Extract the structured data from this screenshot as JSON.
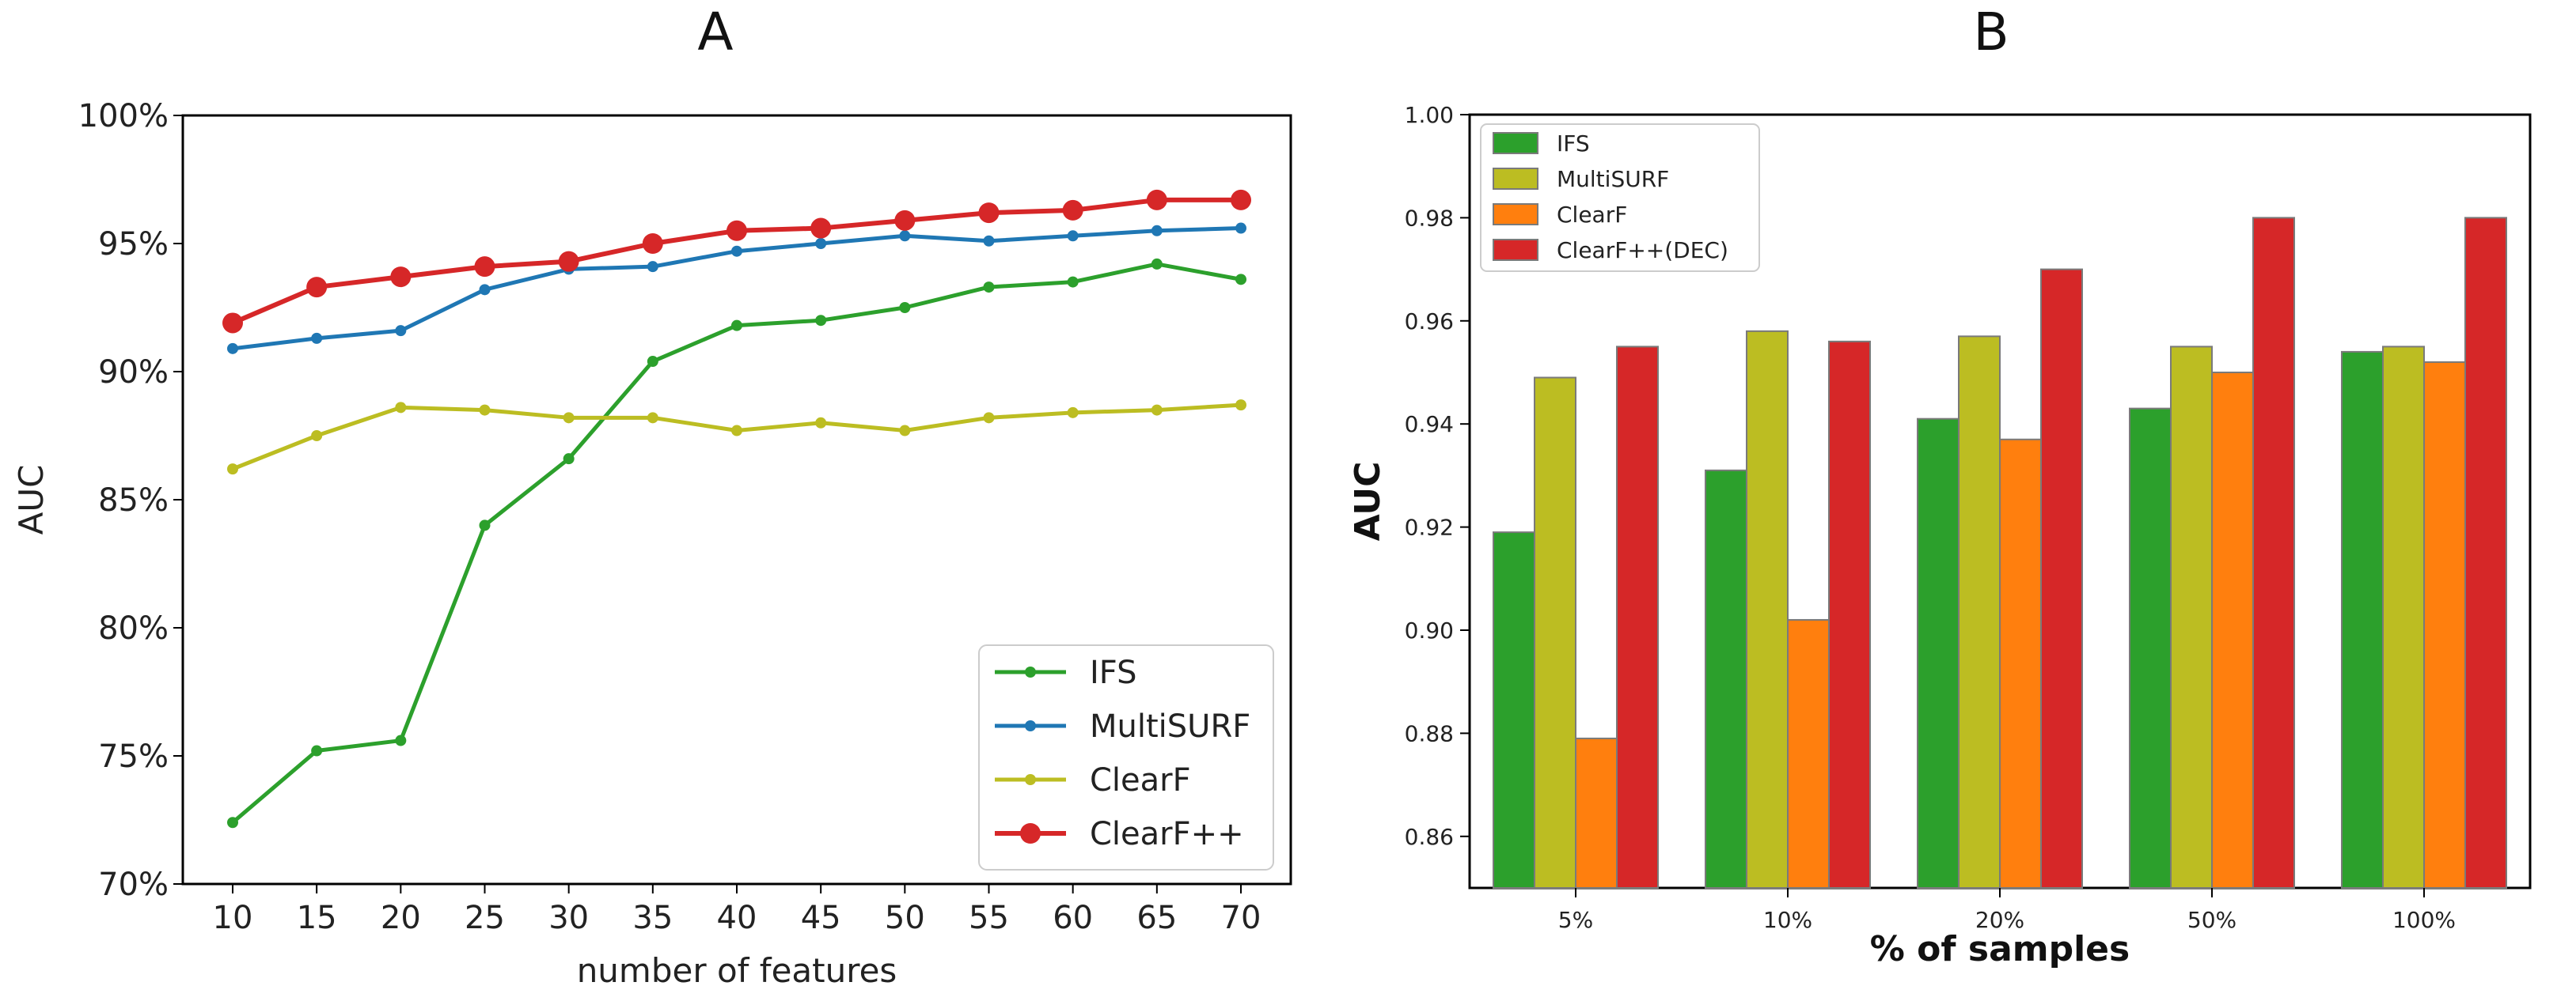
{
  "chart_data": [
    {
      "panel": "A",
      "type": "line",
      "title": "",
      "xlabel": "number of features",
      "ylabel": "AUC",
      "x": [
        10,
        15,
        20,
        25,
        30,
        35,
        40,
        45,
        50,
        55,
        60,
        65,
        70
      ],
      "ylim": [
        70,
        100
      ],
      "yticks": [
        70,
        75,
        80,
        85,
        90,
        95,
        100
      ],
      "ytick_labels": [
        "70%",
        "75%",
        "80%",
        "85%",
        "90%",
        "95%",
        "100%"
      ],
      "legend_position": "lower-right",
      "series": [
        {
          "name": "IFS",
          "color": "#2ca02c",
          "marker": "small",
          "values": [
            72.4,
            75.2,
            75.6,
            84.0,
            86.6,
            90.4,
            91.8,
            92.0,
            92.5,
            93.3,
            93.5,
            94.2,
            93.6
          ]
        },
        {
          "name": "MultiSURF",
          "color": "#1f77b4",
          "marker": "small",
          "values": [
            90.9,
            91.3,
            91.6,
            93.2,
            94.0,
            94.1,
            94.7,
            95.0,
            95.3,
            95.1,
            95.3,
            95.5,
            95.6
          ]
        },
        {
          "name": "ClearF",
          "color": "#bcbd22",
          "marker": "small",
          "values": [
            86.2,
            87.5,
            88.6,
            88.5,
            88.2,
            88.2,
            87.7,
            88.0,
            87.7,
            88.2,
            88.4,
            88.5,
            88.7
          ]
        },
        {
          "name": "ClearF++",
          "color": "#d62728",
          "marker": "large",
          "values": [
            91.9,
            93.3,
            93.7,
            94.1,
            94.3,
            95.0,
            95.5,
            95.6,
            95.9,
            96.2,
            96.3,
            96.7,
            96.7
          ]
        }
      ]
    },
    {
      "panel": "B",
      "type": "bar",
      "title": "",
      "xlabel": "% of samples",
      "ylabel": "AUC",
      "categories": [
        "5%",
        "10%",
        "20%",
        "50%",
        "100%"
      ],
      "ylim": [
        0.85,
        1.0
      ],
      "yticks": [
        0.86,
        0.88,
        0.9,
        0.92,
        0.94,
        0.96,
        0.98,
        1.0
      ],
      "ytick_labels": [
        "0.86",
        "0.88",
        "0.90",
        "0.92",
        "0.94",
        "0.96",
        "0.98",
        "1.00"
      ],
      "legend_position": "top-left",
      "series": [
        {
          "name": "IFS",
          "color": "#2ca02c",
          "values": [
            0.919,
            0.931,
            0.941,
            0.943,
            0.954
          ]
        },
        {
          "name": "MultiSURF",
          "color": "#bcbd22",
          "values": [
            0.949,
            0.958,
            0.957,
            0.955,
            0.955
          ]
        },
        {
          "name": "ClearF",
          "color": "#ff7f0e",
          "values": [
            0.879,
            0.902,
            0.937,
            0.95,
            0.952
          ]
        },
        {
          "name": "ClearF++(DEC)",
          "color": "#d62728",
          "values": [
            0.955,
            0.956,
            0.97,
            0.98,
            0.98
          ]
        }
      ]
    }
  ]
}
